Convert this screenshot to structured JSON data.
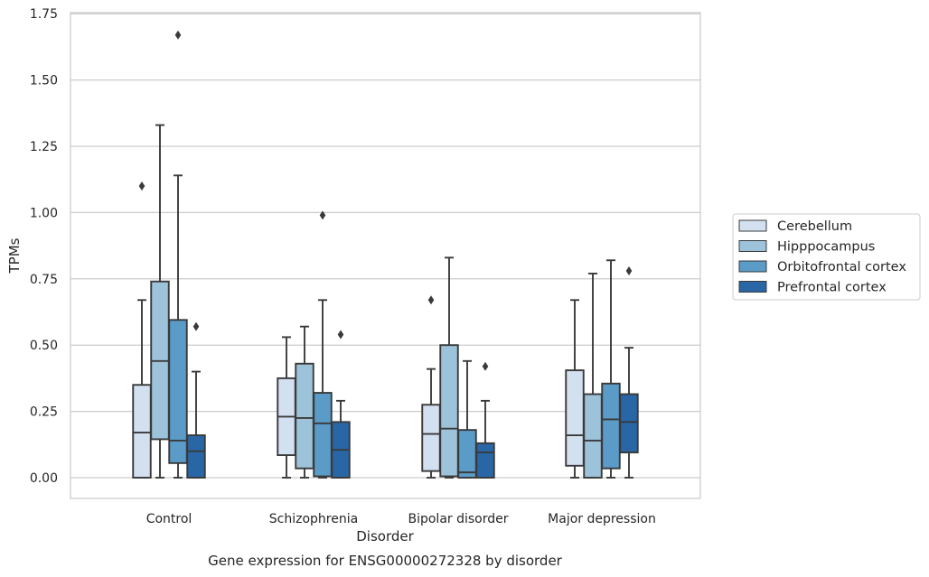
{
  "chart_data": {
    "type": "box",
    "title": "",
    "caption": "Gene expression for ENSG00000272328 by disorder",
    "xlabel": "Disorder",
    "ylabel": "TPMs",
    "ylim": [
      -0.08,
      1.76
    ],
    "yticks": [
      "0.00",
      "0.25",
      "0.50",
      "0.75",
      "1.00",
      "1.25",
      "1.50",
      "1.75"
    ],
    "grid": "horizontal",
    "legend_position": "right",
    "categories": [
      "Control",
      "Schizophrenia",
      "Bipolar disorder",
      "Major depression"
    ],
    "series": [
      {
        "name": "Cerebellum",
        "color": "#d3e0f0",
        "boxes": [
          {
            "whislo": 0.0,
            "q1": 0.0,
            "med": 0.17,
            "q3": 0.35,
            "whishi": 0.67,
            "fliers": [
              1.1
            ]
          },
          {
            "whislo": 0.0,
            "q1": 0.085,
            "med": 0.23,
            "q3": 0.375,
            "whishi": 0.53,
            "fliers": []
          },
          {
            "whislo": 0.0,
            "q1": 0.025,
            "med": 0.165,
            "q3": 0.275,
            "whishi": 0.41,
            "fliers": [
              0.67
            ]
          },
          {
            "whislo": 0.0,
            "q1": 0.045,
            "med": 0.16,
            "q3": 0.405,
            "whishi": 0.67,
            "fliers": []
          }
        ]
      },
      {
        "name": "Hipppocampus",
        "color": "#9cc3da",
        "boxes": [
          {
            "whislo": 0.0,
            "q1": 0.145,
            "med": 0.44,
            "q3": 0.74,
            "whishi": 1.33,
            "fliers": []
          },
          {
            "whislo": 0.0,
            "q1": 0.035,
            "med": 0.225,
            "q3": 0.43,
            "whishi": 0.57,
            "fliers": []
          },
          {
            "whislo": 0.0,
            "q1": 0.005,
            "med": 0.185,
            "q3": 0.5,
            "whishi": 0.83,
            "fliers": []
          },
          {
            "whislo": 0.0,
            "q1": 0.0,
            "med": 0.14,
            "q3": 0.315,
            "whishi": 0.77,
            "fliers": []
          }
        ]
      },
      {
        "name": "Orbitofrontal cortex",
        "color": "#5a9bc8",
        "boxes": [
          {
            "whislo": 0.0,
            "q1": 0.055,
            "med": 0.14,
            "q3": 0.595,
            "whishi": 1.14,
            "fliers": [
              1.67
            ]
          },
          {
            "whislo": 0.0,
            "q1": 0.005,
            "med": 0.205,
            "q3": 0.32,
            "whishi": 0.67,
            "fliers": [
              0.99
            ]
          },
          {
            "whislo": 0.0,
            "q1": 0.0,
            "med": 0.02,
            "q3": 0.18,
            "whishi": 0.44,
            "fliers": []
          },
          {
            "whislo": 0.0,
            "q1": 0.035,
            "med": 0.22,
            "q3": 0.355,
            "whishi": 0.82,
            "fliers": []
          }
        ]
      },
      {
        "name": "Prefrontal cortex",
        "color": "#2866a6",
        "boxes": [
          {
            "whislo": 0.0,
            "q1": 0.0,
            "med": 0.1,
            "q3": 0.16,
            "whishi": 0.4,
            "fliers": [
              0.57
            ]
          },
          {
            "whislo": 0.0,
            "q1": 0.0,
            "med": 0.105,
            "q3": 0.21,
            "whishi": 0.29,
            "fliers": [
              0.54
            ]
          },
          {
            "whislo": 0.0,
            "q1": 0.0,
            "med": 0.095,
            "q3": 0.13,
            "whishi": 0.29,
            "fliers": [
              0.42
            ]
          },
          {
            "whislo": 0.0,
            "q1": 0.095,
            "med": 0.21,
            "q3": 0.315,
            "whishi": 0.49,
            "fliers": [
              0.78
            ]
          }
        ]
      }
    ]
  }
}
